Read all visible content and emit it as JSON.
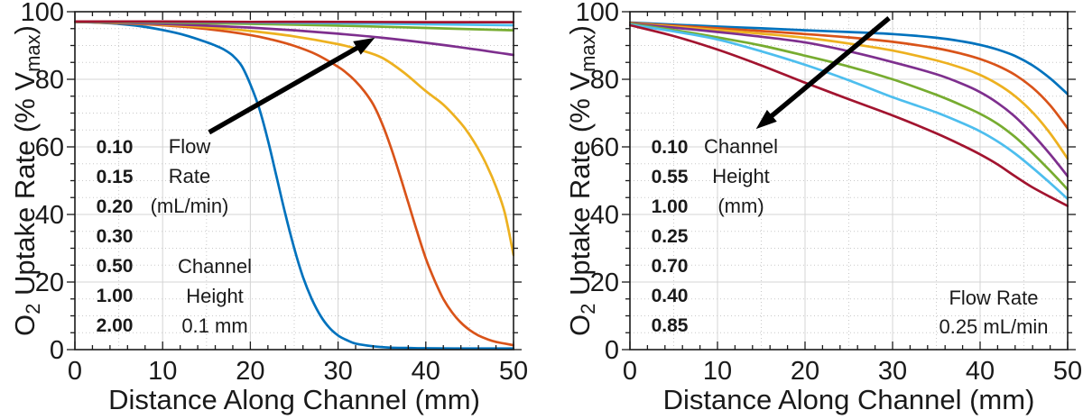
{
  "figure": {
    "background": "#ffffff",
    "text_color": "#1a1a1a",
    "axis_color": "#1a1a1a",
    "grid_major_color": "#d4d4d4",
    "grid_minor_color": "#c9c9c9",
    "arrow_color": "#000000",
    "ylabel_rich": [
      {
        "t": "O"
      },
      {
        "t": "2",
        "sub": true
      },
      {
        "t": " Uptake Rate (% V"
      },
      {
        "t": "max",
        "sub": true
      },
      {
        "t": ")"
      }
    ]
  },
  "palette": {
    "blue": "#0072BD",
    "orange": "#D95319",
    "yellow": "#EDB120",
    "purple": "#7E2F8E",
    "green": "#77AC30",
    "cyan": "#4DBEEE",
    "dark_red": "#A2142F"
  },
  "chart_data": [
    {
      "type": "line",
      "title": "",
      "xlabel": "Distance Along Channel (mm)",
      "ylabel": "O2 Uptake Rate (% Vmax)",
      "xlim": [
        0,
        50
      ],
      "ylim": [
        0,
        100
      ],
      "xticks": [
        0,
        10,
        20,
        30,
        40,
        50
      ],
      "yticks": [
        0,
        20,
        40,
        60,
        80,
        100
      ],
      "grid": "major solid + minor dotted",
      "legend_title": "Flow Rate (mL/min)",
      "legend_title_lines": [
        "Flow",
        "Rate",
        "(mL/min)"
      ],
      "annotation": "Channel Height 0.1 mm",
      "annotation_lines": [
        "Channel",
        "Height",
        "0.1 mm"
      ],
      "arrow": {
        "from_xy": [
          15.3,
          64.3
        ],
        "to_xy": [
          34.2,
          92.3
        ],
        "meaning": "direction of increasing flow rate"
      },
      "legend_items": [
        {
          "label": "0.10",
          "color": "#0072BD"
        },
        {
          "label": "0.15",
          "color": "#D95319"
        },
        {
          "label": "0.20",
          "color": "#EDB120"
        },
        {
          "label": "0.30",
          "color": "#7E2F8E"
        },
        {
          "label": "0.50",
          "color": "#77AC30"
        },
        {
          "label": "1.00",
          "color": "#4DBEEE"
        },
        {
          "label": "2.00",
          "color": "#A2142F"
        }
      ],
      "series": [
        {
          "name": "0.10",
          "color": "#0072BD",
          "x": [
            0,
            2.5,
            5,
            7.5,
            10,
            12.5,
            15,
            16,
            17,
            18,
            19,
            20,
            21,
            22,
            23,
            24,
            25,
            26,
            27,
            28,
            29,
            30,
            31,
            32,
            34,
            36,
            38,
            40,
            45,
            50
          ],
          "y": [
            97.0,
            96.8,
            96.4,
            95.7,
            94.6,
            93.1,
            91.0,
            90.0,
            88.8,
            87.0,
            84.0,
            78.5,
            71.5,
            62.0,
            51.0,
            40.0,
            30.0,
            21.5,
            15.0,
            10.0,
            6.5,
            4.2,
            2.8,
            1.8,
            1.0,
            0.6,
            0.5,
            0.4,
            0.35,
            0.35
          ]
        },
        {
          "name": "0.15",
          "color": "#D95319",
          "x": [
            0,
            5,
            10,
            15,
            20,
            22.5,
            25,
            27.5,
            30,
            31,
            32,
            33,
            34,
            35,
            36,
            37,
            38,
            39,
            40,
            41,
            42,
            43,
            44,
            45,
            46,
            47,
            48,
            50
          ],
          "y": [
            97.0,
            96.6,
            96.0,
            94.9,
            93.1,
            91.7,
            89.9,
            87.4,
            83.7,
            81.8,
            79.4,
            76.4,
            72.6,
            67.0,
            60.0,
            52.0,
            43.5,
            35.0,
            27.0,
            20.5,
            15.0,
            11.0,
            8.0,
            5.8,
            4.2,
            3.1,
            2.3,
            1.3
          ]
        },
        {
          "name": "0.20",
          "color": "#EDB120",
          "x": [
            0,
            5,
            10,
            15,
            20,
            25,
            30,
            32.5,
            35,
            37.5,
            40,
            42,
            44,
            45,
            46,
            47,
            48,
            49,
            50
          ],
          "y": [
            97.0,
            96.7,
            96.2,
            95.4,
            94.3,
            92.7,
            90.4,
            88.7,
            86.4,
            82.0,
            76.5,
            72.5,
            67.0,
            63.5,
            59.3,
            54.3,
            48.2,
            40.5,
            28.0
          ]
        },
        {
          "name": "0.30",
          "color": "#7E2F8E",
          "x": [
            0,
            5,
            10,
            15,
            20,
            25,
            30,
            35,
            40,
            45,
            50
          ],
          "y": [
            97.0,
            96.8,
            96.4,
            95.9,
            95.3,
            94.5,
            93.5,
            92.3,
            90.8,
            89.1,
            87.2
          ]
        },
        {
          "name": "0.50",
          "color": "#77AC30",
          "x": [
            0,
            10,
            20,
            30,
            40,
            50
          ],
          "y": [
            97.0,
            96.8,
            96.4,
            95.9,
            95.2,
            94.5
          ]
        },
        {
          "name": "1.00",
          "color": "#4DBEEE",
          "x": [
            0,
            10,
            20,
            30,
            40,
            50
          ],
          "y": [
            97.1,
            97.0,
            96.8,
            96.6,
            96.3,
            96.0
          ]
        },
        {
          "name": "2.00",
          "color": "#A2142F",
          "x": [
            0,
            10,
            20,
            30,
            40,
            50
          ],
          "y": [
            97.1,
            97.1,
            97.0,
            97.0,
            96.9,
            96.9
          ]
        }
      ]
    },
    {
      "type": "line",
      "title": "",
      "xlabel": "Distance Along Channel (mm)",
      "ylabel": "O2 Uptake Rate (% Vmax)",
      "xlim": [
        0,
        50
      ],
      "ylim": [
        0,
        100
      ],
      "xticks": [
        0,
        10,
        20,
        30,
        40,
        50
      ],
      "yticks": [
        0,
        20,
        40,
        60,
        80,
        100
      ],
      "grid": "major solid + minor dotted",
      "legend_title": "Channel Height (mm)",
      "legend_title_lines": [
        "Channel",
        "Height",
        "(mm)"
      ],
      "annotation": "Flow Rate 0.25 mL/min",
      "annotation_lines": [
        "Flow Rate",
        "0.25 mL/min"
      ],
      "arrow": {
        "from_xy": [
          29.6,
          98.1
        ],
        "to_xy": [
          14.4,
          65.3
        ],
        "meaning": "direction of increasing channel height"
      },
      "legend_items": [
        {
          "label": "0.10",
          "color": "#0072BD"
        },
        {
          "label": "0.55",
          "color": "#7E2F8E"
        },
        {
          "label": "1.00",
          "color": "#A2142F"
        },
        {
          "label": "0.25",
          "color": "#D95319"
        },
        {
          "label": "0.70",
          "color": "#77AC30"
        },
        {
          "label": "0.40",
          "color": "#EDB120"
        },
        {
          "label": "0.85",
          "color": "#4DBEEE"
        }
      ],
      "series": [
        {
          "name": "0.10",
          "color": "#0072BD",
          "x": [
            0,
            5,
            10,
            15,
            20,
            25,
            30,
            35,
            38,
            40,
            42,
            44,
            46,
            48,
            50
          ],
          "y": [
            96.8,
            96.2,
            95.6,
            95.1,
            94.5,
            94.0,
            93.4,
            92.3,
            91.2,
            90.2,
            88.8,
            86.9,
            84.1,
            80.3,
            75.6
          ]
        },
        {
          "name": "0.25",
          "color": "#D95319",
          "x": [
            0,
            5,
            10,
            15,
            20,
            25,
            30,
            35,
            38,
            40,
            42,
            44,
            46,
            48,
            50
          ],
          "y": [
            96.7,
            95.9,
            95.1,
            94.3,
            93.4,
            92.4,
            91.1,
            89.2,
            87.5,
            86.0,
            84.0,
            81.3,
            77.5,
            72.3,
            65.5
          ]
        },
        {
          "name": "0.40",
          "color": "#EDB120",
          "x": [
            0,
            5,
            10,
            15,
            20,
            25,
            30,
            35,
            38,
            40,
            42,
            44,
            46,
            48,
            50
          ],
          "y": [
            96.6,
            95.6,
            94.6,
            93.5,
            92.3,
            90.6,
            88.5,
            85.6,
            83.3,
            81.3,
            78.6,
            75.0,
            70.2,
            64.0,
            56.5
          ]
        },
        {
          "name": "0.55",
          "color": "#7E2F8E",
          "x": [
            0,
            5,
            10,
            15,
            20,
            25,
            30,
            35,
            38,
            40,
            42,
            44,
            46,
            48,
            50
          ],
          "y": [
            96.5,
            95.3,
            94.0,
            92.6,
            90.9,
            88.3,
            85.1,
            81.5,
            78.6,
            76.2,
            73.0,
            68.9,
            63.7,
            57.8,
            51.3
          ]
        },
        {
          "name": "0.70",
          "color": "#77AC30",
          "x": [
            0,
            5,
            10,
            15,
            20,
            25,
            30,
            35,
            38,
            40,
            42,
            44,
            46,
            48,
            50
          ],
          "y": [
            96.4,
            94.6,
            92.4,
            90.0,
            87.0,
            83.8,
            80.0,
            75.4,
            72.2,
            69.8,
            66.8,
            62.9,
            58.1,
            52.9,
            47.4
          ]
        },
        {
          "name": "0.85",
          "color": "#4DBEEE",
          "x": [
            0,
            5,
            10,
            15,
            20,
            25,
            30,
            35,
            38,
            40,
            42,
            44,
            46,
            48,
            50
          ],
          "y": [
            96.2,
            94.2,
            91.8,
            88.3,
            84.3,
            79.7,
            74.7,
            70.2,
            67.0,
            64.6,
            61.6,
            58.0,
            53.8,
            49.3,
            44.6
          ]
        },
        {
          "name": "1.00",
          "color": "#A2142F",
          "x": [
            0,
            5,
            10,
            15,
            20,
            25,
            30,
            35,
            38,
            40,
            42,
            44,
            46,
            48,
            50
          ],
          "y": [
            96.0,
            92.8,
            88.8,
            84.1,
            79.0,
            74.1,
            69.3,
            64.0,
            60.4,
            57.8,
            54.8,
            51.3,
            48.0,
            45.2,
            42.5
          ]
        }
      ]
    }
  ]
}
